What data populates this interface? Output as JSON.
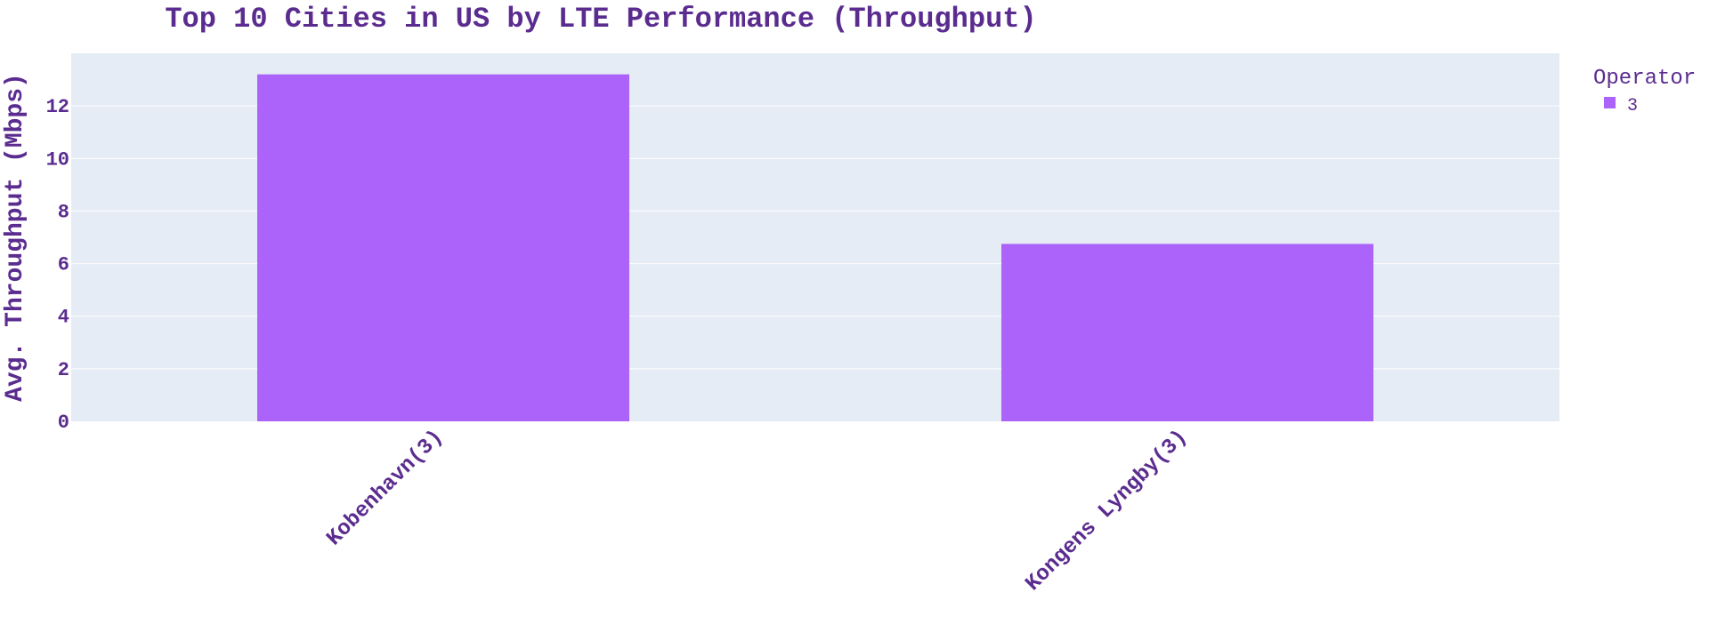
{
  "chart_data": {
    "type": "bar",
    "title": "Top 10 Cities in US by LTE Performance (Throughput)",
    "xlabel": "",
    "ylabel": "Avg. Throughput (Mbps)",
    "categories": [
      "Kobenhavn(3)",
      "Kongens Lyngby(3)"
    ],
    "series": [
      {
        "name": "3",
        "values": [
          13.2,
          6.75
        ]
      }
    ],
    "ylim": [
      0,
      14
    ],
    "yticks": [
      0,
      2,
      4,
      6,
      8,
      10,
      12
    ],
    "legend": {
      "title": "Operator",
      "placement": "top-right"
    },
    "grid": true,
    "colors": {
      "bar": "#ab63fa",
      "plot_bg": "#e5ecf6",
      "grid": "#ffffff",
      "text": "#5b2c8f"
    }
  }
}
